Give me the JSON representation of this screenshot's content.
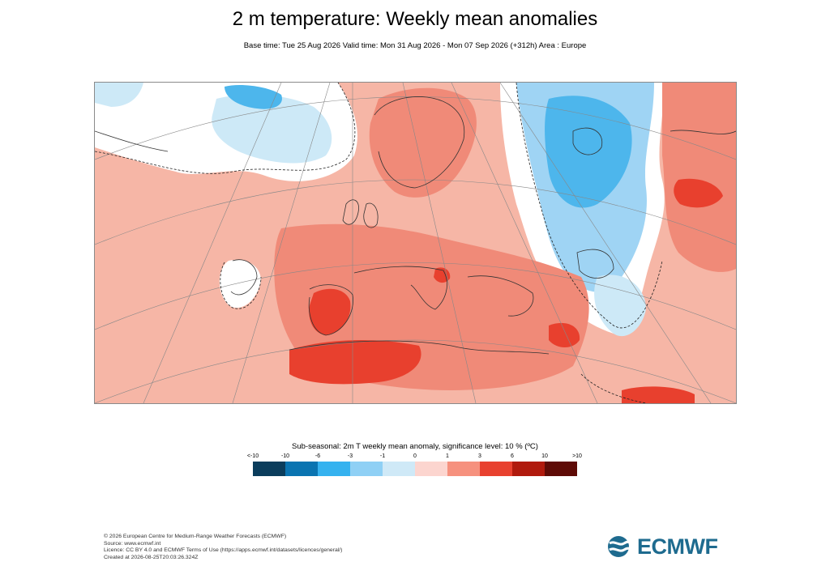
{
  "header": {
    "title": "2 m temperature: Weekly mean anomalies",
    "subtitle": "Base time: Tue 25 Aug 2026 Valid time: Mon 31 Aug 2026 - Mon 07 Sep 2026 (+312h) Area : Europe"
  },
  "map": {
    "region": "Europe",
    "projection": "polar stereographic",
    "colors": {
      "background_warm": "#f6b6a6",
      "moderate_warm": "#f08a78",
      "strong_warm": "#e8402e",
      "neutral": "#ffffff",
      "light_cool": "#cde9f7",
      "moderate_cool": "#9fd4f4",
      "strong_cool": "#4db6ec",
      "coastline": "#333333",
      "graticule": "#888888"
    }
  },
  "legend": {
    "title": "Sub-seasonal: 2m T weekly mean anomaly, significance level: 10 % (ºC)",
    "ticks": [
      "<-10",
      "-10",
      "-6",
      "-3",
      "-1",
      "0",
      "1",
      "3",
      "6",
      "10",
      ">10"
    ],
    "colors": [
      "#0b3d5c",
      "#0a74b1",
      "#35b2ef",
      "#8fd0f5",
      "#cfe9f7",
      "#fcd5cf",
      "#f6917e",
      "#e8412f",
      "#b01a0d",
      "#5e0b06"
    ]
  },
  "footer": {
    "lines": [
      "© 2026 European Centre for Medium-Range Weather Forecasts (ECMWF)",
      "Source: www.ecmwf.int",
      "Licence: CC BY 4.0 and ECMWF Terms of Use (https://apps.ecmwf.int/datasets/licences/general/)",
      "Created at 2026-08-25T20:03:26.324Z"
    ]
  },
  "logo": {
    "text": "ECMWF",
    "color": "#1e6b8f"
  }
}
